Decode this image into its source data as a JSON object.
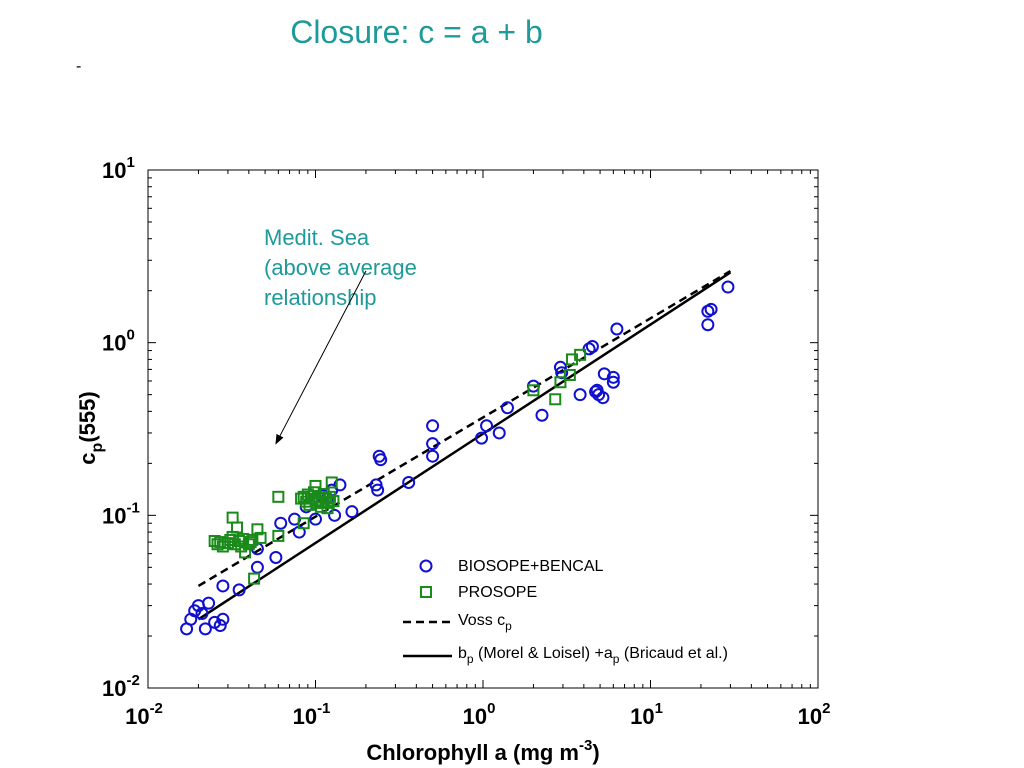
{
  "slide": {
    "title": "Closure: c = a + b",
    "bullet": "-"
  },
  "colors": {
    "title": "#1f9a9a",
    "biosope": "#1010d0",
    "prosope": "#1a8a1a",
    "lines": "#000000"
  },
  "chart_data": {
    "type": "scatter",
    "x_scale": "log",
    "y_scale": "log",
    "xlim": [
      0.01,
      100
    ],
    "ylim": [
      0.01,
      10
    ],
    "grid": false,
    "x_ticks": [
      {
        "value": 0.01,
        "base": "10",
        "exp": "-2"
      },
      {
        "value": 0.1,
        "base": "10",
        "exp": "-1"
      },
      {
        "value": 1,
        "base": "10",
        "exp": "0"
      },
      {
        "value": 10,
        "base": "10",
        "exp": "1"
      },
      {
        "value": 100,
        "base": "10",
        "exp": "2"
      }
    ],
    "y_ticks": [
      {
        "value": 0.01,
        "base": "10",
        "exp": "-2"
      },
      {
        "value": 0.1,
        "base": "10",
        "exp": "-1"
      },
      {
        "value": 1,
        "base": "10",
        "exp": "0"
      },
      {
        "value": 10,
        "base": "10",
        "exp": "1"
      }
    ],
    "xlabel": {
      "pre": "Chlorophyll a (mg m",
      "sup": "-3",
      "post": ")"
    },
    "ylabel": {
      "pre": "c",
      "sub": "p",
      "post": "(555)"
    },
    "annotation": {
      "lines": [
        "Medit. Sea",
        "(above average",
        "relationship"
      ],
      "arrow_from": [
        0.2,
        2.6
      ],
      "arrow_to": [
        0.058,
        0.26
      ]
    },
    "legend": {
      "position": "bottom-right",
      "entries": [
        {
          "marker": "circle",
          "parts": [
            {
              "t": "BIOSOPE+BENCAL"
            }
          ]
        },
        {
          "marker": "square",
          "parts": [
            {
              "t": "PROSOPE"
            }
          ]
        },
        {
          "marker": "dashed",
          "parts": [
            {
              "t": "Voss c"
            },
            {
              "t": "p",
              "sub": true
            }
          ]
        },
        {
          "marker": "solid",
          "parts": [
            {
              "t": "b"
            },
            {
              "t": "p",
              "sub": true
            },
            {
              "t": " (Morel & Loisel) +a"
            },
            {
              "t": "p",
              "sub": true
            },
            {
              "t": " (Bricaud et al.)"
            }
          ]
        }
      ]
    },
    "series": [
      {
        "name": "BIOSOPE+BENCAL",
        "marker": "circle",
        "points": [
          [
            0.017,
            0.022
          ],
          [
            0.018,
            0.025
          ],
          [
            0.019,
            0.028
          ],
          [
            0.02,
            0.03
          ],
          [
            0.021,
            0.027
          ],
          [
            0.022,
            0.022
          ],
          [
            0.023,
            0.031
          ],
          [
            0.025,
            0.024
          ],
          [
            0.027,
            0.023
          ],
          [
            0.028,
            0.025
          ],
          [
            0.028,
            0.039
          ],
          [
            0.035,
            0.037
          ],
          [
            0.045,
            0.05
          ],
          [
            0.045,
            0.064
          ],
          [
            0.058,
            0.057
          ],
          [
            0.062,
            0.09
          ],
          [
            0.075,
            0.095
          ],
          [
            0.08,
            0.08
          ],
          [
            0.088,
            0.112
          ],
          [
            0.1,
            0.095
          ],
          [
            0.11,
            0.13
          ],
          [
            0.118,
            0.125
          ],
          [
            0.125,
            0.14
          ],
          [
            0.13,
            0.1
          ],
          [
            0.14,
            0.15
          ],
          [
            0.165,
            0.105
          ],
          [
            0.23,
            0.15
          ],
          [
            0.235,
            0.14
          ],
          [
            0.24,
            0.22
          ],
          [
            0.245,
            0.21
          ],
          [
            0.36,
            0.155
          ],
          [
            0.5,
            0.22
          ],
          [
            0.5,
            0.26
          ],
          [
            0.5,
            0.33
          ],
          [
            0.98,
            0.28
          ],
          [
            1.05,
            0.33
          ],
          [
            1.25,
            0.3
          ],
          [
            1.4,
            0.42
          ],
          [
            2.0,
            0.56
          ],
          [
            2.25,
            0.38
          ],
          [
            2.9,
            0.72
          ],
          [
            2.95,
            0.67
          ],
          [
            3.8,
            0.5
          ],
          [
            4.3,
            0.92
          ],
          [
            4.5,
            0.95
          ],
          [
            4.7,
            0.52
          ],
          [
            4.8,
            0.53
          ],
          [
            4.9,
            0.5
          ],
          [
            5.2,
            0.48
          ],
          [
            5.3,
            0.66
          ],
          [
            6.0,
            0.63
          ],
          [
            6.0,
            0.59
          ],
          [
            6.3,
            1.2
          ],
          [
            22.0,
            1.27
          ],
          [
            22.0,
            1.52
          ],
          [
            23.0,
            1.56
          ],
          [
            29.0,
            2.1
          ]
        ]
      },
      {
        "name": "PROSOPE",
        "marker": "square",
        "points": [
          [
            0.025,
            0.071
          ],
          [
            0.026,
            0.068
          ],
          [
            0.027,
            0.07
          ],
          [
            0.028,
            0.066
          ],
          [
            0.03,
            0.069
          ],
          [
            0.031,
            0.072
          ],
          [
            0.032,
            0.075
          ],
          [
            0.032,
            0.097
          ],
          [
            0.033,
            0.068
          ],
          [
            0.034,
            0.085
          ],
          [
            0.035,
            0.071
          ],
          [
            0.036,
            0.066
          ],
          [
            0.037,
            0.073
          ],
          [
            0.038,
            0.061
          ],
          [
            0.04,
            0.068
          ],
          [
            0.041,
            0.07
          ],
          [
            0.042,
            0.072
          ],
          [
            0.043,
            0.043
          ],
          [
            0.045,
            0.083
          ],
          [
            0.047,
            0.074
          ],
          [
            0.06,
            0.076
          ],
          [
            0.06,
            0.128
          ],
          [
            0.082,
            0.125
          ],
          [
            0.085,
            0.128
          ],
          [
            0.088,
            0.12
          ],
          [
            0.09,
            0.132
          ],
          [
            0.092,
            0.115
          ],
          [
            0.095,
            0.125
          ],
          [
            0.098,
            0.136
          ],
          [
            0.1,
            0.148
          ],
          [
            0.1,
            0.122
          ],
          [
            0.102,
            0.118
          ],
          [
            0.105,
            0.127
          ],
          [
            0.108,
            0.112
          ],
          [
            0.11,
            0.12
          ],
          [
            0.112,
            0.133
          ],
          [
            0.115,
            0.125
          ],
          [
            0.118,
            0.11
          ],
          [
            0.12,
            0.118
          ],
          [
            0.122,
            0.128
          ],
          [
            0.125,
            0.155
          ],
          [
            0.128,
            0.121
          ],
          [
            0.085,
            0.09
          ],
          [
            2.0,
            0.53
          ],
          [
            2.7,
            0.47
          ],
          [
            2.9,
            0.59
          ],
          [
            3.3,
            0.65
          ],
          [
            3.4,
            0.8
          ],
          [
            3.8,
            0.85
          ]
        ]
      },
      {
        "name": "Voss c_p",
        "type": "line",
        "style": "dashed",
        "points": [
          [
            0.02,
            0.039
          ],
          [
            30,
            2.6
          ]
        ]
      },
      {
        "name": "b_p (Morel & Loisel) +a_p (Bricaud et al.)",
        "type": "line",
        "style": "solid",
        "points": [
          [
            0.02,
            0.025
          ],
          [
            30,
            2.55
          ]
        ]
      }
    ]
  }
}
